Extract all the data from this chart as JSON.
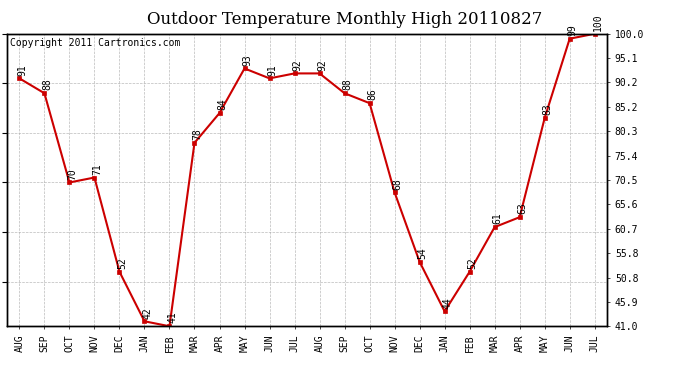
{
  "title": "Outdoor Temperature Monthly High 20110827",
  "copyright": "Copyright 2011 Cartronics.com",
  "months": [
    "AUG",
    "SEP",
    "OCT",
    "NOV",
    "DEC",
    "JAN",
    "FEB",
    "MAR",
    "APR",
    "MAY",
    "JUN",
    "JUL",
    "AUG",
    "SEP",
    "OCT",
    "NOV",
    "DEC",
    "JAN",
    "FEB",
    "MAR",
    "APR",
    "MAY",
    "JUN",
    "JUL"
  ],
  "values": [
    91,
    88,
    70,
    71,
    52,
    42,
    41,
    78,
    84,
    93,
    91,
    92,
    92,
    88,
    86,
    68,
    54,
    44,
    52,
    61,
    63,
    83,
    99,
    100
  ],
  "ylim": [
    41.0,
    100.0
  ],
  "yticks_right": [
    41.0,
    45.9,
    50.8,
    55.8,
    60.7,
    65.6,
    70.5,
    75.4,
    80.3,
    85.2,
    90.2,
    95.1,
    100.0
  ],
  "line_color": "#cc0000",
  "marker": "s",
  "marker_color": "#cc0000",
  "bg_color": "#ffffff",
  "grid_color": "#aaaaaa",
  "title_fontsize": 12,
  "annot_fontsize": 7,
  "tick_fontsize": 7,
  "copyright_fontsize": 7
}
